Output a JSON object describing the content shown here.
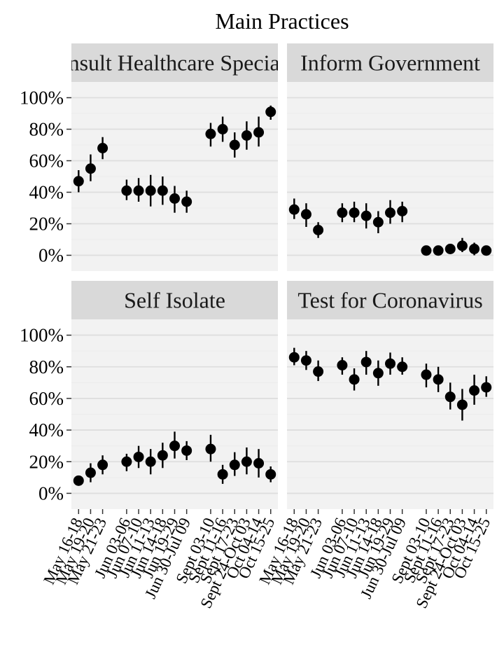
{
  "chart_data": {
    "type": "scatter",
    "title": "Main Practices",
    "xlabel": "",
    "ylabel": "",
    "ylim": [
      -0.1,
      1.1
    ],
    "yticks": [
      0,
      0.2,
      0.4,
      0.6,
      0.8,
      1.0
    ],
    "ytick_labels": [
      "0%",
      "20%",
      "40%",
      "60%",
      "80%",
      "100%"
    ],
    "grid": true,
    "legend": "none",
    "colors": {
      "panel_bg": "#f2f2f2",
      "strip_bg": "#d9d9d9",
      "grid": "#dedede",
      "point": "#000000"
    },
    "x_ticks": [
      {
        "label": "May 16-18",
        "pos": 1
      },
      {
        "label": "May 19-20",
        "pos": 2
      },
      {
        "label": "May 21-23",
        "pos": 3
      },
      {
        "label": "Jun 03-06",
        "pos": 5
      },
      {
        "label": "Jun 07-10",
        "pos": 6
      },
      {
        "label": "Jun 11-13",
        "pos": 7
      },
      {
        "label": "Jun 14-18",
        "pos": 8
      },
      {
        "label": "Jun 19-29",
        "pos": 9
      },
      {
        "label": "Jun 30-Jul 09",
        "pos": 10
      },
      {
        "label": "Sept 03-10",
        "pos": 12
      },
      {
        "label": "Sept 11-16",
        "pos": 13
      },
      {
        "label": "Sept 17-23",
        "pos": 14
      },
      {
        "label": "Sept 24-Oct 03",
        "pos": 15
      },
      {
        "label": "Oct 04-14",
        "pos": 16
      },
      {
        "label": "Oct 15-25",
        "pos": 17
      }
    ],
    "panels": [
      {
        "label": "Consult Healthcare Specialist",
        "points": [
          {
            "x": 1,
            "y": 0.47,
            "lo": 0.4,
            "hi": 0.54
          },
          {
            "x": 2,
            "y": 0.55,
            "lo": 0.47,
            "hi": 0.64
          },
          {
            "x": 3,
            "y": 0.68,
            "lo": 0.61,
            "hi": 0.75
          },
          {
            "x": 5,
            "y": 0.41,
            "lo": 0.35,
            "hi": 0.48
          },
          {
            "x": 6,
            "y": 0.41,
            "lo": 0.34,
            "hi": 0.49
          },
          {
            "x": 7,
            "y": 0.41,
            "lo": 0.31,
            "hi": 0.51
          },
          {
            "x": 8,
            "y": 0.41,
            "lo": 0.32,
            "hi": 0.5
          },
          {
            "x": 9,
            "y": 0.36,
            "lo": 0.27,
            "hi": 0.44
          },
          {
            "x": 10,
            "y": 0.34,
            "lo": 0.27,
            "hi": 0.41
          },
          {
            "x": 12,
            "y": 0.77,
            "lo": 0.69,
            "hi": 0.84
          },
          {
            "x": 13,
            "y": 0.8,
            "lo": 0.72,
            "hi": 0.88
          },
          {
            "x": 14,
            "y": 0.7,
            "lo": 0.62,
            "hi": 0.78
          },
          {
            "x": 15,
            "y": 0.76,
            "lo": 0.67,
            "hi": 0.85
          },
          {
            "x": 16,
            "y": 0.78,
            "lo": 0.69,
            "hi": 0.88
          },
          {
            "x": 17,
            "y": 0.91,
            "lo": 0.86,
            "hi": 0.95
          }
        ]
      },
      {
        "label": "Inform Government",
        "points": [
          {
            "x": 1,
            "y": 0.29,
            "lo": 0.23,
            "hi": 0.36
          },
          {
            "x": 2,
            "y": 0.26,
            "lo": 0.18,
            "hi": 0.33
          },
          {
            "x": 3,
            "y": 0.16,
            "lo": 0.11,
            "hi": 0.21
          },
          {
            "x": 5,
            "y": 0.27,
            "lo": 0.21,
            "hi": 0.33
          },
          {
            "x": 6,
            "y": 0.27,
            "lo": 0.21,
            "hi": 0.34
          },
          {
            "x": 7,
            "y": 0.25,
            "lo": 0.17,
            "hi": 0.33
          },
          {
            "x": 8,
            "y": 0.21,
            "lo": 0.14,
            "hi": 0.28
          },
          {
            "x": 9,
            "y": 0.27,
            "lo": 0.2,
            "hi": 0.35
          },
          {
            "x": 10,
            "y": 0.28,
            "lo": 0.21,
            "hi": 0.34
          },
          {
            "x": 12,
            "y": 0.03,
            "lo": 0.01,
            "hi": 0.05
          },
          {
            "x": 13,
            "y": 0.03,
            "lo": 0.01,
            "hi": 0.06
          },
          {
            "x": 14,
            "y": 0.04,
            "lo": 0.01,
            "hi": 0.06
          },
          {
            "x": 15,
            "y": 0.06,
            "lo": 0.02,
            "hi": 0.11
          },
          {
            "x": 16,
            "y": 0.04,
            "lo": 0.0,
            "hi": 0.08
          },
          {
            "x": 17,
            "y": 0.03,
            "lo": 0.01,
            "hi": 0.06
          }
        ]
      },
      {
        "label": "Self Isolate",
        "points": [
          {
            "x": 1,
            "y": 0.08,
            "lo": 0.05,
            "hi": 0.11
          },
          {
            "x": 2,
            "y": 0.13,
            "lo": 0.07,
            "hi": 0.19
          },
          {
            "x": 3,
            "y": 0.18,
            "lo": 0.12,
            "hi": 0.24
          },
          {
            "x": 5,
            "y": 0.2,
            "lo": 0.14,
            "hi": 0.25
          },
          {
            "x": 6,
            "y": 0.23,
            "lo": 0.16,
            "hi": 0.3
          },
          {
            "x": 7,
            "y": 0.2,
            "lo": 0.12,
            "hi": 0.28
          },
          {
            "x": 8,
            "y": 0.24,
            "lo": 0.16,
            "hi": 0.32
          },
          {
            "x": 9,
            "y": 0.3,
            "lo": 0.22,
            "hi": 0.39
          },
          {
            "x": 10,
            "y": 0.27,
            "lo": 0.21,
            "hi": 0.33
          },
          {
            "x": 12,
            "y": 0.28,
            "lo": 0.2,
            "hi": 0.37
          },
          {
            "x": 13,
            "y": 0.12,
            "lo": 0.06,
            "hi": 0.18
          },
          {
            "x": 14,
            "y": 0.18,
            "lo": 0.11,
            "hi": 0.26
          },
          {
            "x": 15,
            "y": 0.2,
            "lo": 0.12,
            "hi": 0.29
          },
          {
            "x": 16,
            "y": 0.19,
            "lo": 0.1,
            "hi": 0.28
          },
          {
            "x": 17,
            "y": 0.12,
            "lo": 0.07,
            "hi": 0.17
          }
        ]
      },
      {
        "label": "Test for Coronavirus",
        "points": [
          {
            "x": 1,
            "y": 0.86,
            "lo": 0.81,
            "hi": 0.92
          },
          {
            "x": 2,
            "y": 0.84,
            "lo": 0.78,
            "hi": 0.9
          },
          {
            "x": 3,
            "y": 0.77,
            "lo": 0.71,
            "hi": 0.84
          },
          {
            "x": 5,
            "y": 0.81,
            "lo": 0.75,
            "hi": 0.86
          },
          {
            "x": 6,
            "y": 0.72,
            "lo": 0.65,
            "hi": 0.79
          },
          {
            "x": 7,
            "y": 0.83,
            "lo": 0.75,
            "hi": 0.9
          },
          {
            "x": 8,
            "y": 0.76,
            "lo": 0.68,
            "hi": 0.84
          },
          {
            "x": 9,
            "y": 0.82,
            "lo": 0.75,
            "hi": 0.89
          },
          {
            "x": 10,
            "y": 0.8,
            "lo": 0.75,
            "hi": 0.86
          },
          {
            "x": 12,
            "y": 0.75,
            "lo": 0.67,
            "hi": 0.82
          },
          {
            "x": 13,
            "y": 0.72,
            "lo": 0.64,
            "hi": 0.8
          },
          {
            "x": 14,
            "y": 0.61,
            "lo": 0.53,
            "hi": 0.7
          },
          {
            "x": 15,
            "y": 0.56,
            "lo": 0.46,
            "hi": 0.66
          },
          {
            "x": 16,
            "y": 0.65,
            "lo": 0.56,
            "hi": 0.75
          },
          {
            "x": 17,
            "y": 0.67,
            "lo": 0.61,
            "hi": 0.74
          }
        ]
      }
    ]
  }
}
